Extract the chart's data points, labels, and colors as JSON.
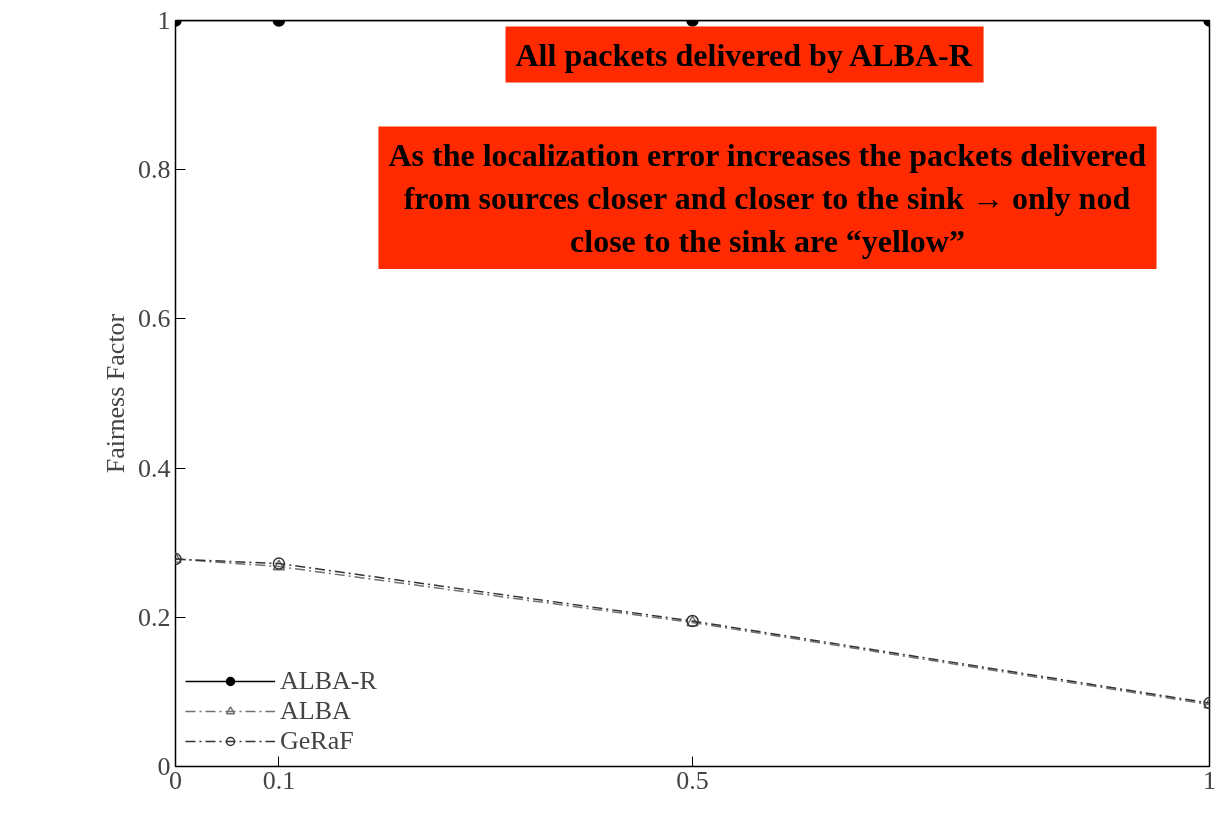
{
  "chart_data": {
    "type": "line",
    "ylabel": "Fairness Factor",
    "x": [
      0,
      0.1,
      0.5,
      1
    ],
    "series": [
      {
        "name": "ALBA-R",
        "color": "#000000",
        "values": [
          1,
          1,
          1,
          1
        ],
        "marker": "circle",
        "line_style": "solid"
      },
      {
        "name": "ALBA",
        "color": "#707070",
        "values": [
          0.278,
          0.268,
          0.193,
          0.083
        ],
        "marker": "triangle",
        "line_style": "dashed"
      },
      {
        "name": "GeRaF",
        "color": "#333333",
        "values": [
          0.278,
          0.272,
          0.195,
          0.085
        ],
        "marker": "circle",
        "line_style": "dashed"
      }
    ],
    "xlim": [
      0,
      1
    ],
    "ylim": [
      0,
      1
    ],
    "xticks": [
      0,
      0.1,
      0.5,
      1
    ],
    "yticks": [
      0,
      0.2,
      0.4,
      0.6,
      0.8,
      1
    ],
    "grid": false,
    "legend": "bottom left",
    "annotations": [
      "All packets delivered by ALBA-R",
      "As the localization error increases the packets delivered\nfrom sources closer and closer to the sink → only nod\nclose to the sink are “yellow”"
    ]
  }
}
